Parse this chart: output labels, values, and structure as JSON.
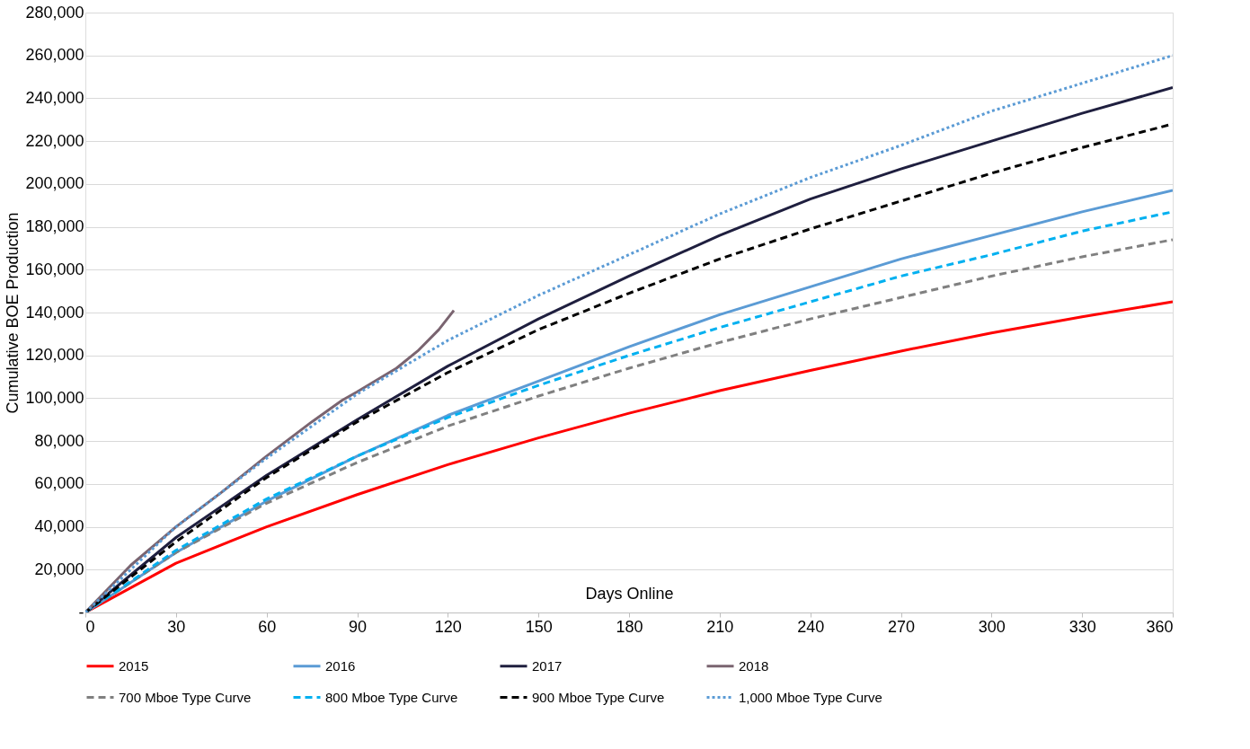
{
  "chart_data": {
    "type": "line",
    "xlabel": "Days Online",
    "ylabel": "Cumulative BOE Production",
    "x": [
      0,
      30,
      60,
      90,
      120,
      150,
      180,
      210,
      240,
      270,
      300,
      330,
      360
    ],
    "xlim": [
      0,
      360
    ],
    "xticks": [
      0,
      30,
      60,
      90,
      120,
      150,
      180,
      210,
      240,
      270,
      300,
      330,
      360
    ],
    "ylim": [
      0,
      280000
    ],
    "yticks": [
      {
        "value": 0,
        "label": "-"
      },
      {
        "value": 20000,
        "label": "20,000"
      },
      {
        "value": 40000,
        "label": "40,000"
      },
      {
        "value": 60000,
        "label": "60,000"
      },
      {
        "value": 80000,
        "label": "80,000"
      },
      {
        "value": 100000,
        "label": "100,000"
      },
      {
        "value": 120000,
        "label": "120,000"
      },
      {
        "value": 140000,
        "label": "140,000"
      },
      {
        "value": 160000,
        "label": "160,000"
      },
      {
        "value": 180000,
        "label": "180,000"
      },
      {
        "value": 200000,
        "label": "200,000"
      },
      {
        "value": 220000,
        "label": "220,000"
      },
      {
        "value": 240000,
        "label": "240,000"
      },
      {
        "value": 260000,
        "label": "260,000"
      },
      {
        "value": 280000,
        "label": "280,000"
      }
    ],
    "grid": "y",
    "legend": "bottom",
    "marker": "none",
    "series": [
      {
        "name": "2015",
        "color": "#ff0000",
        "line_style": "solid",
        "values": [
          0,
          23000,
          40000,
          55000,
          69000,
          81500,
          93000,
          103500,
          113000,
          122000,
          130500,
          138000,
          145000
        ]
      },
      {
        "name": "2016",
        "color": "#5b9bd5",
        "line_style": "solid",
        "values": [
          0,
          28000,
          52000,
          73000,
          92000,
          108000,
          124000,
          139000,
          152000,
          165000,
          176000,
          187000,
          197000
        ]
      },
      {
        "name": "2017",
        "color": "#1f1f3f",
        "line_style": "solid",
        "values": [
          0,
          35000,
          64000,
          90000,
          115000,
          137000,
          157000,
          176000,
          193000,
          207000,
          220000,
          233000,
          245000
        ]
      },
      {
        "name": "2018",
        "color": "#7a6470",
        "line_style": "solid",
        "x": [
          0,
          15,
          30,
          45,
          60,
          75,
          85,
          90,
          103,
          110,
          117,
          122
        ],
        "values": [
          0,
          22000,
          40000,
          56000,
          73000,
          89000,
          99000,
          103000,
          114000,
          122000,
          132000,
          141000
        ]
      },
      {
        "name": "700 Mboe Type Curve",
        "color": "#808080",
        "line_style": "dashed",
        "values": [
          0,
          28000,
          51000,
          70000,
          87000,
          101000,
          114000,
          126000,
          137000,
          147000,
          157000,
          166000,
          174000
        ]
      },
      {
        "name": "800 Mboe Type Curve",
        "color": "#00b0f0",
        "line_style": "dashed",
        "values": [
          0,
          29000,
          53000,
          73000,
          91000,
          106000,
          120000,
          133000,
          145000,
          157000,
          167000,
          178000,
          187000
        ]
      },
      {
        "name": "900 Mboe Type Curve",
        "color": "#000000",
        "line_style": "dashed",
        "values": [
          0,
          33000,
          63000,
          89000,
          112000,
          132000,
          149000,
          165000,
          179000,
          192000,
          205000,
          217000,
          228000
        ]
      },
      {
        "name": "1,000 Mboe Type Curve",
        "color": "#5b9bd5",
        "line_style": "dotted",
        "values": [
          0,
          40000,
          72000,
          102000,
          127000,
          148000,
          167000,
          186000,
          203000,
          218000,
          234000,
          247000,
          260000
        ]
      }
    ]
  }
}
